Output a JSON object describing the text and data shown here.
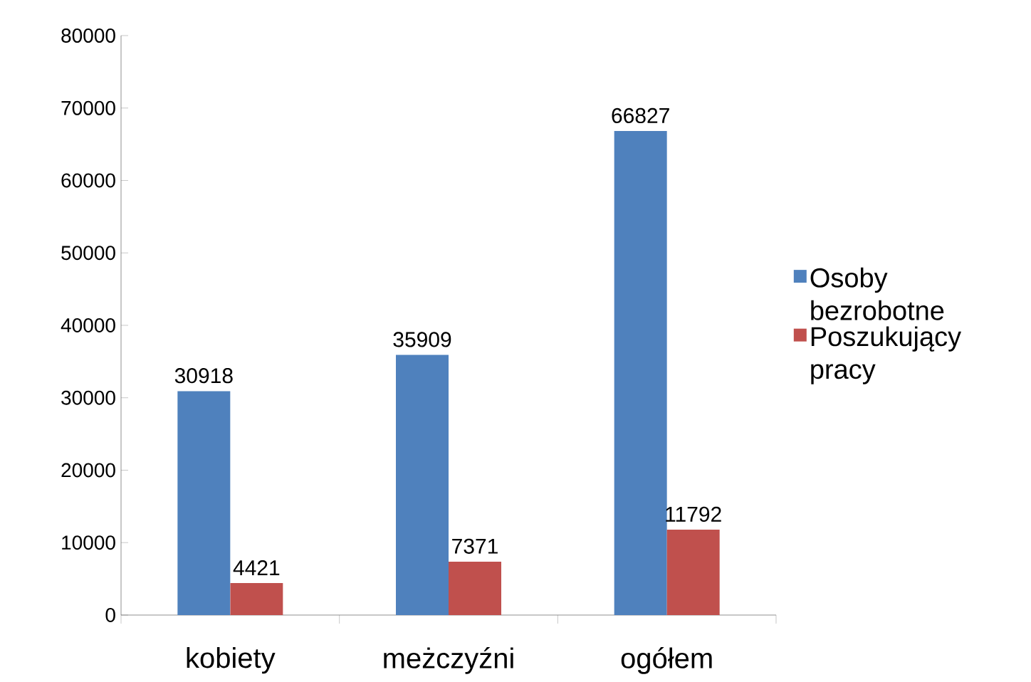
{
  "chart_data": {
    "type": "bar",
    "categories": [
      "kobiety",
      "meżczyźni",
      "ogółem"
    ],
    "series": [
      {
        "name": "Osoby bezrobotne",
        "color": "#4f81bd",
        "values": [
          30918,
          35909,
          66827
        ]
      },
      {
        "name": "Poszukujący pracy",
        "color": "#c0504d",
        "values": [
          4421,
          7371,
          11792
        ]
      }
    ],
    "ylim": [
      0,
      80000
    ],
    "yticks": [
      0,
      10000,
      20000,
      30000,
      40000,
      50000,
      60000,
      70000,
      80000
    ],
    "grid": false,
    "legend": "right",
    "data_labels": true
  }
}
